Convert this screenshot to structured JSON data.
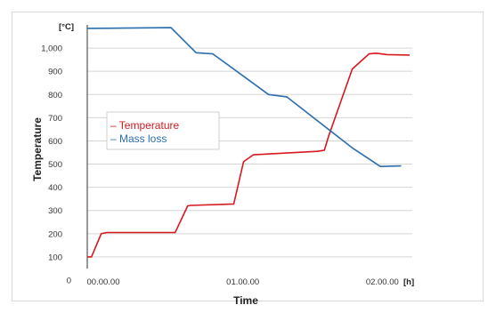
{
  "chart_data": {
    "type": "line",
    "ylabel": "Temperature",
    "y_unit": "[°C]",
    "xlabel": "Time",
    "x_unit": "[h]",
    "y_ticks": [
      {
        "value": 0,
        "label": "0"
      },
      {
        "value": 100,
        "label": "100"
      },
      {
        "value": 200,
        "label": "200"
      },
      {
        "value": 300,
        "label": "300"
      },
      {
        "value": 400,
        "label": "400"
      },
      {
        "value": 500,
        "label": "500"
      },
      {
        "value": 600,
        "label": "600"
      },
      {
        "value": 700,
        "label": "700"
      },
      {
        "value": 800,
        "label": "800"
      },
      {
        "value": 900,
        "label": "900"
      },
      {
        "value": 1000,
        "label": "1,000"
      }
    ],
    "x_ticks": [
      {
        "value": 0,
        "label": "00.00.00"
      },
      {
        "value": 1,
        "label": "01.00.00"
      },
      {
        "value": 2,
        "label": "02.00.00"
      }
    ],
    "xlim": [
      0,
      2.33
    ],
    "ylim": [
      0,
      1100
    ],
    "grid": "horizontal",
    "legend_position": "middle-left",
    "series": [
      {
        "name": "Temperature",
        "color": "#d7191f",
        "x": [
          0.0,
          0.03,
          0.1,
          0.14,
          0.2,
          0.63,
          0.72,
          0.74,
          1.05,
          1.12,
          1.19,
          1.65,
          1.7,
          1.73,
          1.9,
          2.02,
          2.07,
          2.15,
          2.31
        ],
        "y": [
          100,
          100,
          200,
          205,
          205,
          205,
          320,
          322,
          328,
          510,
          540,
          555,
          560,
          620,
          910,
          975,
          978,
          972,
          970
        ]
      },
      {
        "name": "Mass loss",
        "color": "#2a6db0",
        "x": [
          0.0,
          0.6,
          0.78,
          0.9,
          1.3,
          1.43,
          1.9,
          2.0,
          2.1,
          2.25
        ],
        "y": [
          1085,
          1088,
          980,
          975,
          800,
          790,
          570,
          530,
          490,
          492
        ]
      }
    ]
  }
}
